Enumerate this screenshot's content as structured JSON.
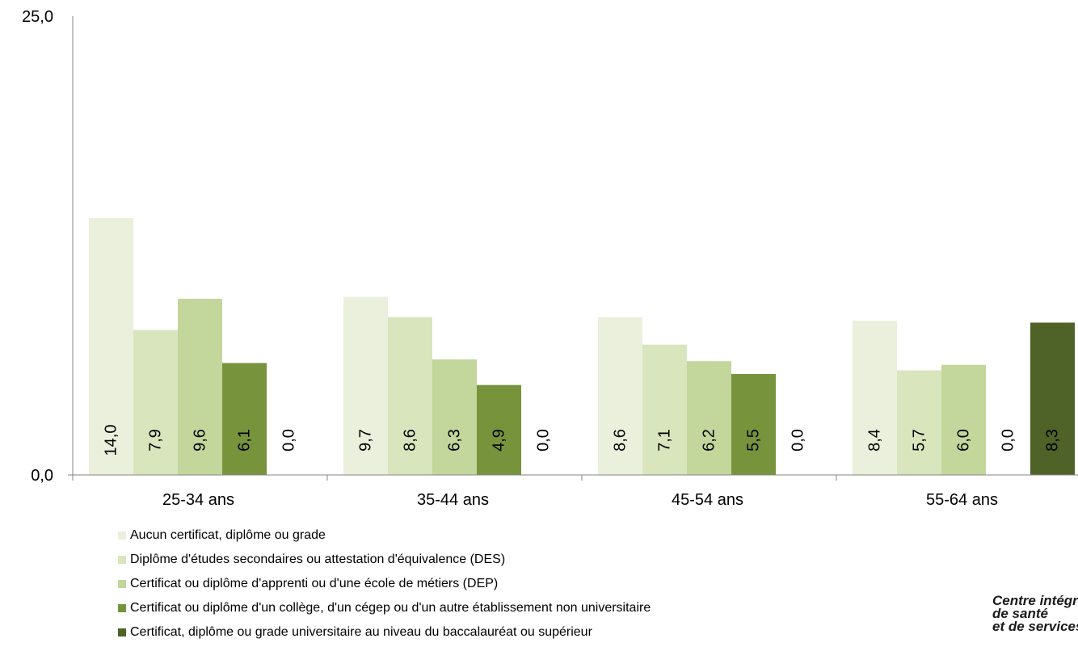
{
  "chart_data": {
    "type": "bar",
    "categories": [
      "25-34 ans",
      "35-44 ans",
      "45-54 ans",
      "55-64 ans"
    ],
    "series": [
      {
        "name": "Aucun certificat, diplôme ou grade",
        "color": "#ebf0dc",
        "values": [
          14.0,
          9.7,
          8.6,
          8.4
        ]
      },
      {
        "name": "Diplôme d'études secondaires ou attestation d'équivalence (DES)",
        "color": "#d8e5bd",
        "values": [
          7.9,
          8.6,
          7.1,
          5.7
        ]
      },
      {
        "name": "Certificat ou diplôme d'apprenti ou d'une école de métiers (DEP)",
        "color": "#c3d69b",
        "values": [
          9.6,
          6.3,
          6.2,
          6.0
        ]
      },
      {
        "name": "Certificat ou diplôme d'un collège, d'un cégep ou d'un autre établissement non universitaire",
        "color": "#77933c",
        "values": [
          6.1,
          4.9,
          5.5,
          0.0
        ]
      },
      {
        "name": "Certificat, diplôme ou grade universitaire au niveau du baccalauréat ou supérieur",
        "color": "#4f6228",
        "values": [
          0.0,
          0.0,
          0.0,
          8.3
        ]
      }
    ],
    "data_labels": [
      [
        "14,0",
        "9,7",
        "8,6",
        "8,4"
      ],
      [
        "7,9",
        "8,6",
        "7,1",
        "5,7"
      ],
      [
        "9,6",
        "6,3",
        "6,2",
        "6,0"
      ],
      [
        "6,1",
        "4,9",
        "5,5",
        "0,0"
      ],
      [
        "0,0",
        "0,0",
        "0,0",
        "8,3"
      ]
    ],
    "ylim": [
      0,
      25
    ],
    "ytick_labels": [
      "0,0",
      "25,0"
    ],
    "grid": false,
    "legend_position": "bottom-left"
  },
  "logo": {
    "lines": [
      "Centre intégré",
      "de santé",
      "et de services sociaux"
    ]
  }
}
